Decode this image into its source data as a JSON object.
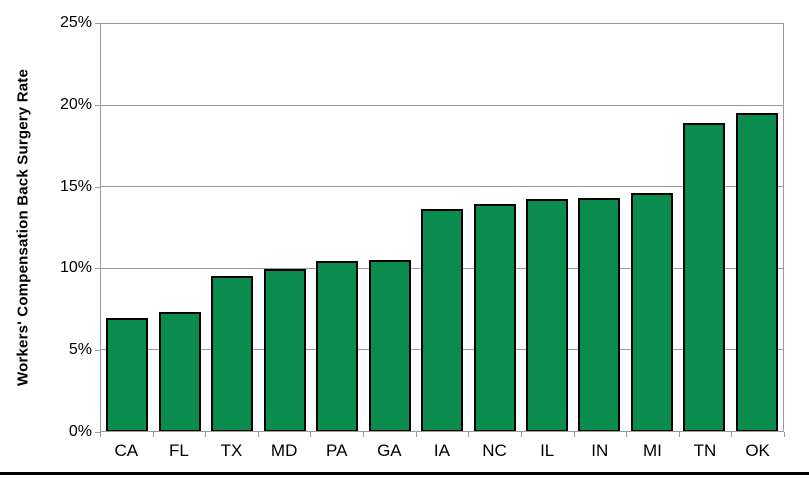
{
  "chart_data": {
    "type": "bar",
    "title": "",
    "xlabel": "",
    "ylabel": "Workers' Compensation Back Surgery Rate",
    "categories": [
      "CA",
      "FL",
      "TX",
      "MD",
      "PA",
      "GA",
      "IA",
      "NC",
      "IL",
      "IN",
      "MI",
      "TN",
      "OK"
    ],
    "values": [
      6.9,
      7.3,
      9.5,
      9.9,
      10.4,
      10.5,
      13.6,
      13.9,
      14.2,
      14.3,
      14.6,
      18.9,
      19.5
    ],
    "unit": "%",
    "ylim": [
      0,
      25
    ],
    "ytick_step": 5,
    "y_tick_labels": [
      "25%",
      "20%",
      "15%",
      "10%",
      "5%",
      "0%"
    ],
    "grid": true,
    "legend": null,
    "colors": {
      "bar": "#0A8C4E",
      "bar_border": "#000000",
      "grid": "#9A9A9A",
      "axis": "#9A9A9A",
      "text": "#000000"
    }
  }
}
